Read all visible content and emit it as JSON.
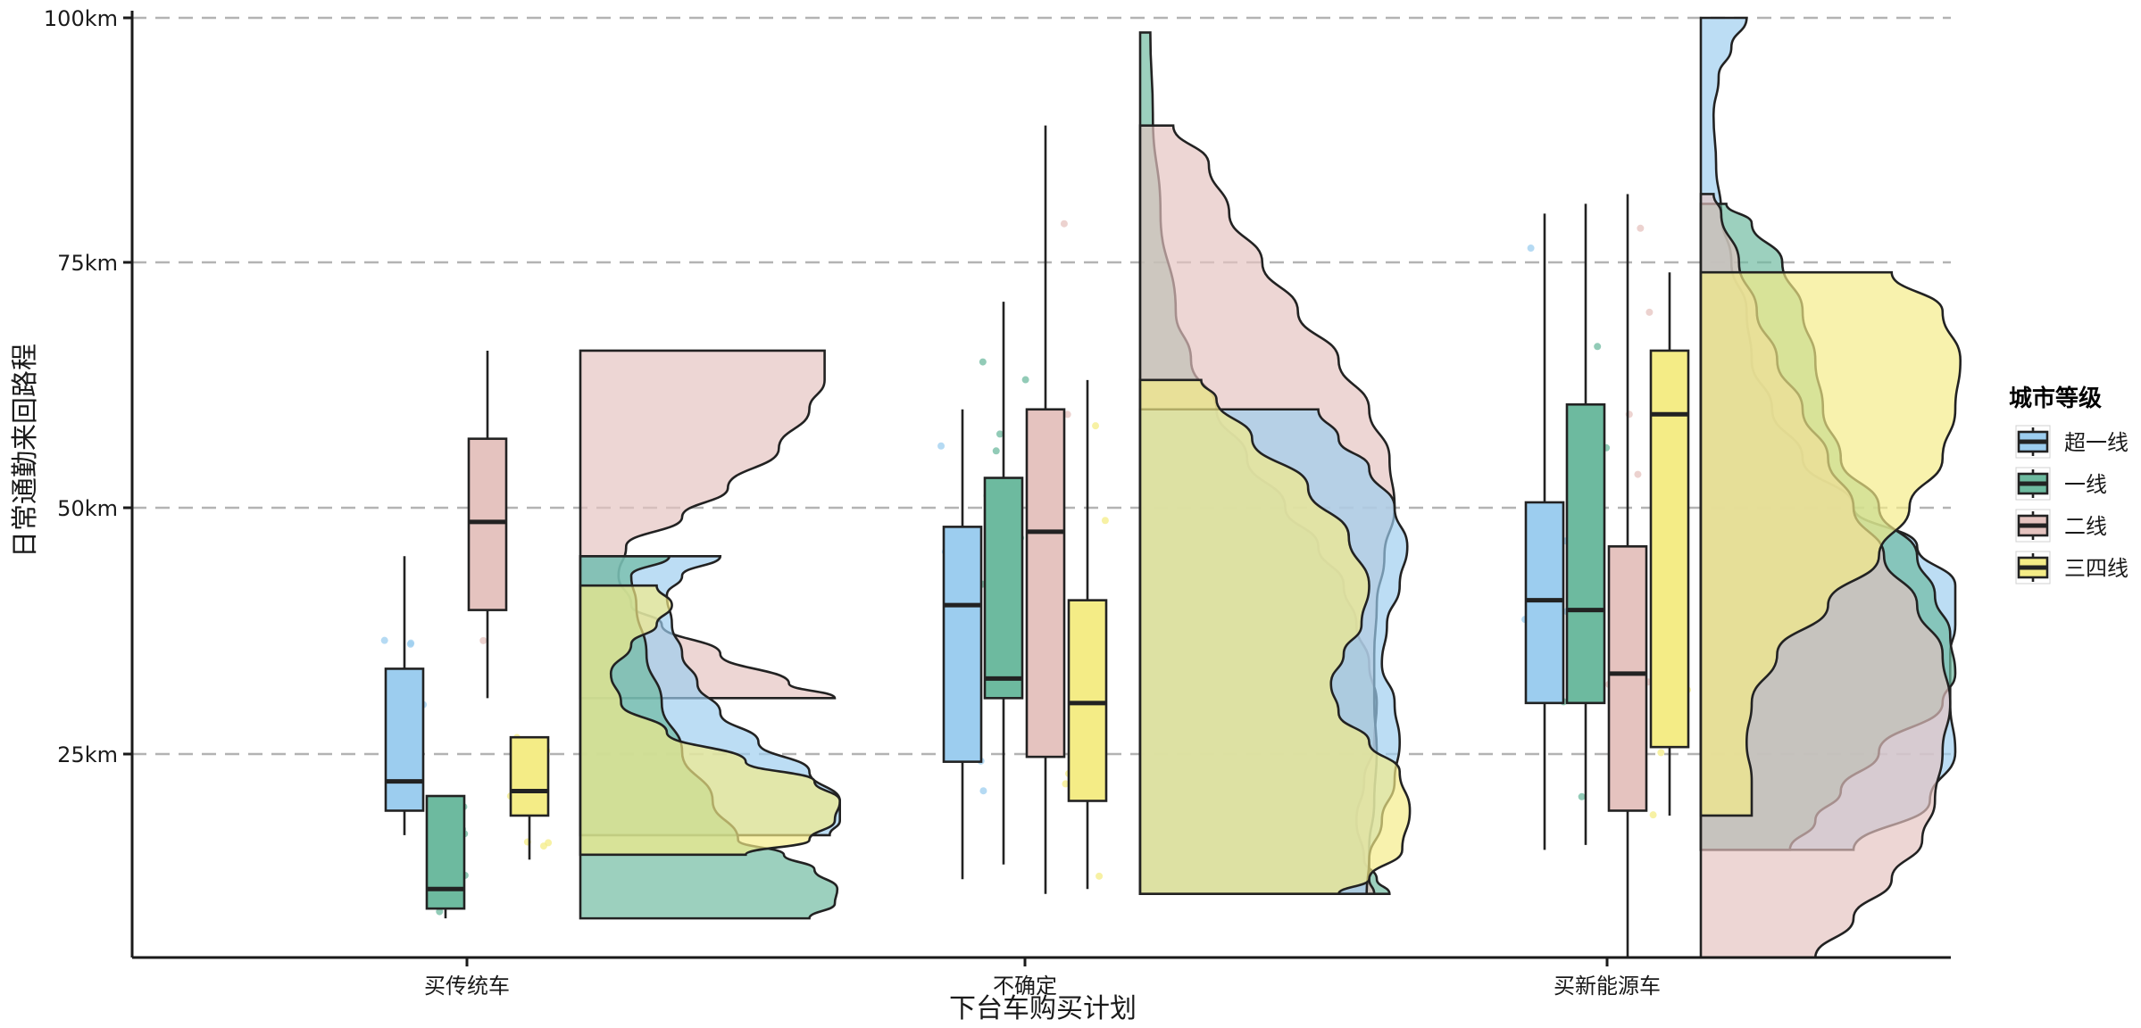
{
  "chart_data": {
    "type": "raincloud",
    "xlabel": "下台车购买计划",
    "ylabel": "日常通勤来回路程",
    "categories": [
      "买传统车",
      "不确定",
      "买新能源车"
    ],
    "y_ticks": [
      "25km",
      "50km",
      "75km",
      "100km"
    ],
    "y_tick_values": [
      25,
      50,
      75,
      100
    ],
    "ylim": [
      4,
      100
    ],
    "grid": "horizontal-dashed",
    "legend": {
      "title": "城市等级",
      "placement": "right",
      "entries": [
        {
          "name": "超一线",
          "color": "#9ccdef"
        },
        {
          "name": "一线",
          "color": "#6dba9f"
        },
        {
          "name": "二线",
          "color": "#e5c3bf"
        },
        {
          "name": "三四线",
          "color": "#f4ec86"
        }
      ]
    },
    "boxplots": [
      [
        {
          "series": "超一线",
          "min": 16.5,
          "q1": 19,
          "median": 22,
          "q3": 33.5,
          "max": 45
        },
        {
          "series": "一线",
          "min": 8,
          "q1": 9,
          "median": 11,
          "q3": 20.5,
          "max": 20.5
        },
        {
          "series": "二线",
          "min": 30.5,
          "q1": 39.5,
          "median": 48.5,
          "q3": 57,
          "max": 66
        },
        {
          "series": "三四线",
          "min": 14,
          "q1": 18.5,
          "median": 21,
          "q3": 26.5,
          "max": 26.5
        }
      ],
      [
        {
          "series": "超一线",
          "min": 12,
          "q1": 24,
          "median": 40,
          "q3": 48,
          "max": 60
        },
        {
          "series": "一线",
          "min": 13.5,
          "q1": 30.5,
          "median": 32.5,
          "q3": 53,
          "max": 71
        },
        {
          "series": "二线",
          "min": 10.5,
          "q1": 24.5,
          "median": 47.5,
          "q3": 60,
          "max": 89
        },
        {
          "series": "三四线",
          "min": 11,
          "q1": 20,
          "median": 30,
          "q3": 40.5,
          "max": 63
        }
      ],
      [
        {
          "series": "超一线",
          "min": 15,
          "q1": 30,
          "median": 40.5,
          "q3": 50.5,
          "max": 80
        },
        {
          "series": "一线",
          "min": 15.5,
          "q1": 30,
          "median": 39.5,
          "q3": 60.5,
          "max": 81
        },
        {
          "series": "二线",
          "min": 4,
          "q1": 19,
          "median": 33,
          "q3": 46,
          "max": 82
        },
        {
          "series": "三四线",
          "min": 18.5,
          "q1": 25.5,
          "median": 59.5,
          "q3": 66,
          "max": 74
        }
      ]
    ],
    "violins": [
      [
        {
          "series": "二线",
          "ymin": 30.5,
          "ymax": 66,
          "widths": [
            [
              30.5,
              1.0
            ],
            [
              32,
              0.82
            ],
            [
              35,
              0.55
            ],
            [
              38,
              0.32
            ],
            [
              40,
              0.2
            ],
            [
              43,
              0.15
            ],
            [
              46,
              0.18
            ],
            [
              49,
              0.4
            ],
            [
              52,
              0.58
            ],
            [
              56,
              0.78
            ],
            [
              60,
              0.9
            ],
            [
              63,
              0.96
            ],
            [
              66,
              0.96
            ]
          ]
        },
        {
          "series": "超一线",
          "ymin": 16.5,
          "ymax": 45,
          "widths": [
            [
              16.5,
              0.98
            ],
            [
              18,
              1.02
            ],
            [
              20,
              1.02
            ],
            [
              23,
              0.9
            ],
            [
              26,
              0.7
            ],
            [
              29,
              0.55
            ],
            [
              32,
              0.46
            ],
            [
              35,
              0.4
            ],
            [
              38,
              0.36
            ],
            [
              41,
              0.34
            ],
            [
              43,
              0.4
            ],
            [
              45,
              0.55
            ]
          ]
        },
        {
          "series": "一线",
          "ymin": 8,
          "ymax": 45,
          "widths": [
            [
              8,
              0.9
            ],
            [
              9.5,
              1.0
            ],
            [
              11,
              1.01
            ],
            [
              13,
              0.92
            ],
            [
              14.5,
              0.8
            ],
            [
              16,
              0.62
            ],
            [
              20,
              0.52
            ],
            [
              25,
              0.4
            ],
            [
              30,
              0.32
            ],
            [
              35,
              0.26
            ],
            [
              40,
              0.22
            ],
            [
              43,
              0.2
            ],
            [
              45,
              0.35
            ]
          ]
        },
        {
          "series": "三四线",
          "ymin": 14.5,
          "ymax": 42,
          "widths": [
            [
              14.5,
              0.65
            ],
            [
              16,
              0.9
            ],
            [
              18,
              1.0
            ],
            [
              20,
              1.02
            ],
            [
              22,
              0.92
            ],
            [
              24,
              0.65
            ],
            [
              27,
              0.34
            ],
            [
              30,
              0.16
            ],
            [
              33,
              0.12
            ],
            [
              36,
              0.2
            ],
            [
              38,
              0.3
            ],
            [
              40,
              0.36
            ],
            [
              42,
              0.3
            ]
          ]
        }
      ],
      [
        {
          "series": "一线",
          "ymin": 10.5,
          "ymax": 98.5,
          "widths": [
            [
              10.5,
              0.98
            ],
            [
              12,
              0.93
            ],
            [
              14,
              0.88
            ],
            [
              18,
              0.85
            ],
            [
              22,
              0.88
            ],
            [
              26,
              0.92
            ],
            [
              30,
              0.93
            ],
            [
              34,
              0.9
            ],
            [
              38,
              0.85
            ],
            [
              42,
              0.8
            ],
            [
              46,
              0.7
            ],
            [
              50,
              0.57
            ],
            [
              55,
              0.42
            ],
            [
              60,
              0.3
            ],
            [
              65,
              0.2
            ],
            [
              70,
              0.14
            ],
            [
              80,
              0.08
            ],
            [
              90,
              0.05
            ],
            [
              98.5,
              0.04
            ]
          ]
        },
        {
          "series": "二线",
          "ymin": 10.5,
          "ymax": 89,
          "widths": [
            [
              10.5,
              0.92
            ],
            [
              12,
              0.9
            ],
            [
              15,
              0.9
            ],
            [
              20,
              0.92
            ],
            [
              25,
              0.93
            ],
            [
              30,
              0.92
            ],
            [
              35,
              0.92
            ],
            [
              40,
              0.93
            ],
            [
              45,
              0.96
            ],
            [
              50,
              1.0
            ],
            [
              55,
              0.98
            ],
            [
              60,
              0.9
            ],
            [
              65,
              0.78
            ],
            [
              70,
              0.62
            ],
            [
              75,
              0.48
            ],
            [
              80,
              0.35
            ],
            [
              85,
              0.27
            ],
            [
              89,
              0.13
            ]
          ]
        },
        {
          "series": "超一线",
          "ymin": 10.5,
          "ymax": 60,
          "widths": [
            [
              10.5,
              0.89
            ],
            [
              14,
              0.9
            ],
            [
              18,
              0.95
            ],
            [
              22,
              1.0
            ],
            [
              26,
              1.02
            ],
            [
              30,
              1.0
            ],
            [
              34,
              0.95
            ],
            [
              38,
              0.97
            ],
            [
              42,
              1.02
            ],
            [
              46,
              1.05
            ],
            [
              50,
              1.0
            ],
            [
              54,
              0.9
            ],
            [
              57,
              0.78
            ],
            [
              60,
              0.7
            ]
          ]
        },
        {
          "series": "三四线",
          "ymin": 10.5,
          "ymax": 63,
          "widths": [
            [
              10.5,
              0.78
            ],
            [
              12,
              0.9
            ],
            [
              15,
              1.03
            ],
            [
              19,
              1.06
            ],
            [
              23,
              1.02
            ],
            [
              26,
              0.9
            ],
            [
              29,
              0.78
            ],
            [
              32,
              0.75
            ],
            [
              35,
              0.8
            ],
            [
              38,
              0.87
            ],
            [
              42,
              0.9
            ],
            [
              47,
              0.82
            ],
            [
              52,
              0.66
            ],
            [
              57,
              0.44
            ],
            [
              61,
              0.3
            ],
            [
              63,
              0.24
            ]
          ]
        }
      ],
      [
        {
          "series": "超一线",
          "ymin": 15,
          "ymax": 100,
          "widths": [
            [
              15,
              0.6
            ],
            [
              20,
              0.9
            ],
            [
              25,
              1.0
            ],
            [
              30,
              0.98
            ],
            [
              35,
              0.98
            ],
            [
              38,
              1.0
            ],
            [
              42,
              1.0
            ],
            [
              46,
              0.85
            ],
            [
              50,
              0.6
            ],
            [
              55,
              0.4
            ],
            [
              60,
              0.28
            ],
            [
              65,
              0.2
            ],
            [
              70,
              0.18
            ],
            [
              75,
              0.12
            ],
            [
              80,
              0.08
            ],
            [
              85,
              0.06
            ],
            [
              90,
              0.05
            ],
            [
              94,
              0.07
            ],
            [
              97,
              0.12
            ],
            [
              100,
              0.18
            ]
          ]
        },
        {
          "series": "一线",
          "ymin": 15,
          "ymax": 81,
          "widths": [
            [
              15,
              0.35
            ],
            [
              18,
              0.45
            ],
            [
              21,
              0.55
            ],
            [
              25,
              0.7
            ],
            [
              30,
              0.95
            ],
            [
              33,
              1.0
            ],
            [
              37,
              0.98
            ],
            [
              41,
              0.92
            ],
            [
              45,
              0.85
            ],
            [
              50,
              0.7
            ],
            [
              55,
              0.55
            ],
            [
              60,
              0.48
            ],
            [
              65,
              0.45
            ],
            [
              70,
              0.4
            ],
            [
              75,
              0.32
            ],
            [
              79,
              0.2
            ],
            [
              81,
              0.1
            ]
          ]
        },
        {
          "series": "二线",
          "ymin": 4,
          "ymax": 82,
          "widths": [
            [
              4,
              0.45
            ],
            [
              8,
              0.6
            ],
            [
              12,
              0.75
            ],
            [
              16,
              0.87
            ],
            [
              20,
              0.92
            ],
            [
              25,
              0.95
            ],
            [
              30,
              0.98
            ],
            [
              35,
              0.95
            ],
            [
              40,
              0.85
            ],
            [
              45,
              0.72
            ],
            [
              50,
              0.6
            ],
            [
              55,
              0.5
            ],
            [
              60,
              0.4
            ],
            [
              65,
              0.3
            ],
            [
              70,
              0.22
            ],
            [
              75,
              0.15
            ],
            [
              80,
              0.08
            ],
            [
              82,
              0.05
            ]
          ]
        },
        {
          "series": "三四线",
          "ymin": 18.5,
          "ymax": 74,
          "widths": [
            [
              18.5,
              0.2
            ],
            [
              22,
              0.2
            ],
            [
              26,
              0.18
            ],
            [
              30,
              0.2
            ],
            [
              35,
              0.3
            ],
            [
              40,
              0.5
            ],
            [
              45,
              0.7
            ],
            [
              50,
              0.82
            ],
            [
              55,
              0.95
            ],
            [
              60,
              1.0
            ],
            [
              65,
              1.02
            ],
            [
              70,
              0.95
            ],
            [
              74,
              0.75
            ]
          ]
        }
      ]
    ]
  }
}
